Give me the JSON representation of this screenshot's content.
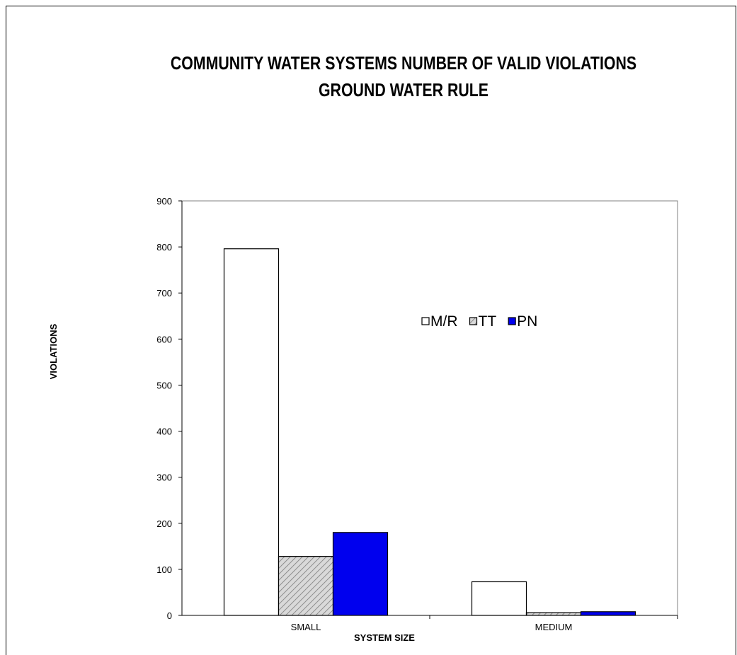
{
  "chart_data": {
    "type": "bar",
    "title": "COMMUNITY WATER SYSTEMS NUMBER OF VALID VIOLATIONS",
    "subtitle": "GROUND WATER RULE",
    "xlabel": "SYSTEM SIZE",
    "ylabel": "VIOLATIONS",
    "categories": [
      "SMALL",
      "MEDIUM"
    ],
    "series": [
      {
        "name": "M/R",
        "values": [
          796,
          73
        ],
        "color": "#ffffff",
        "pattern": "none"
      },
      {
        "name": "TT",
        "values": [
          128,
          6
        ],
        "color": "#d9d9d9",
        "pattern": "diagonal-hatch"
      },
      {
        "name": "PN",
        "values": [
          180,
          8
        ],
        "color": "#0000ee",
        "pattern": "none"
      }
    ],
    "ylim": [
      0,
      900
    ],
    "yticks": [
      0,
      100,
      200,
      300,
      400,
      500,
      600,
      700,
      800,
      900
    ],
    "grid": false,
    "legend_position": "center-right"
  }
}
